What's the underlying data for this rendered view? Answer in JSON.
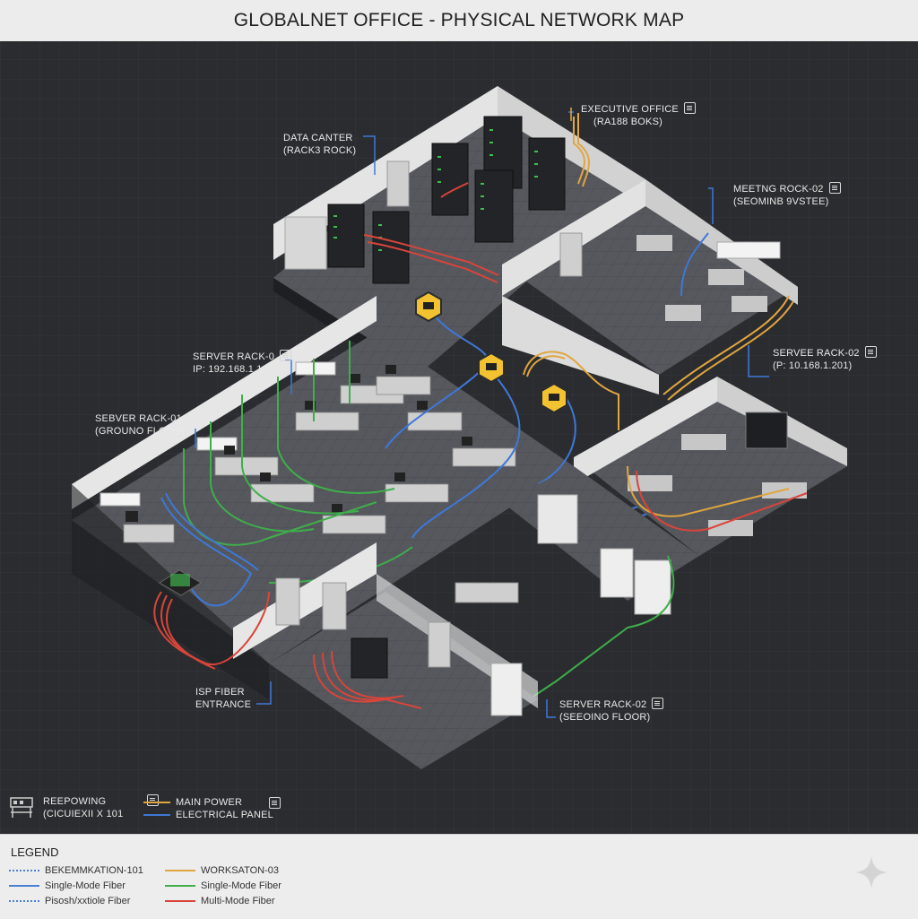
{
  "title": "GLOBALNET OFFICE - PHYSICAL NETWORK MAP",
  "callouts": {
    "data_center": {
      "line1": "DATA CANTER",
      "line2": "(RACK3 ROCK)"
    },
    "executive_office": {
      "line1": "EXECUTIVE OFFICE",
      "line2": "(RA188 BOKS)"
    },
    "meeting_rack": {
      "line1": "MEETNG ROCK-02",
      "line2": "(SEOMINB 9VSTEE)"
    },
    "server_rack_0": {
      "line1": "SERVER RACK-0",
      "line2": "IP: 192.168.1.101"
    },
    "server_rack_01": {
      "line1": "SEBVER RACK-01",
      "line2": "(GROUNO FLOOE)"
    },
    "server_rack_02_right": {
      "line1": "SERVEE RACK-02",
      "line2": "(P: 10.168.1.201)"
    },
    "isp_fiber": {
      "line1": "ISP FIBER",
      "line2": "ENTRANCE"
    },
    "server_rack_02_bottom": {
      "line1": "SERVER RACK-02",
      "line2": "(SEEOINO FLOOR)"
    },
    "reepowing": {
      "line1": "REEPOWING",
      "line2": "(CICUIEXII X 101"
    },
    "main_power": {
      "line1": "MAIN POWER",
      "line2": "ELECTRICAL PANEL"
    }
  },
  "legend": {
    "title": "LEGEND",
    "items": [
      {
        "label": "BEKEMMKATION-101",
        "color": "#4a7fd4",
        "style": "dotted"
      },
      {
        "label": "Single-Mode Fiber",
        "color": "#4a7fd4",
        "style": "solid"
      },
      {
        "label": "Pisosh/xxtiole Fiber",
        "color": "#4a7fd4",
        "style": "dotted"
      },
      {
        "label": "WORKSATON-03",
        "color": "#e0a640",
        "style": "solid"
      },
      {
        "label": "Single-Mode Fiber",
        "color": "#3fae4b",
        "style": "solid"
      },
      {
        "label": "Multi-Mode Fiber",
        "color": "#d8453b",
        "style": "solid"
      }
    ]
  },
  "colors": {
    "fiber_blue": "#3f78d6",
    "cable_green": "#3fae4b",
    "power_orange": "#e0a640",
    "isp_red": "#d8453b",
    "switch_yellow": "#f2c230",
    "floor": "#55575d",
    "wall": "#e6e6e6"
  }
}
